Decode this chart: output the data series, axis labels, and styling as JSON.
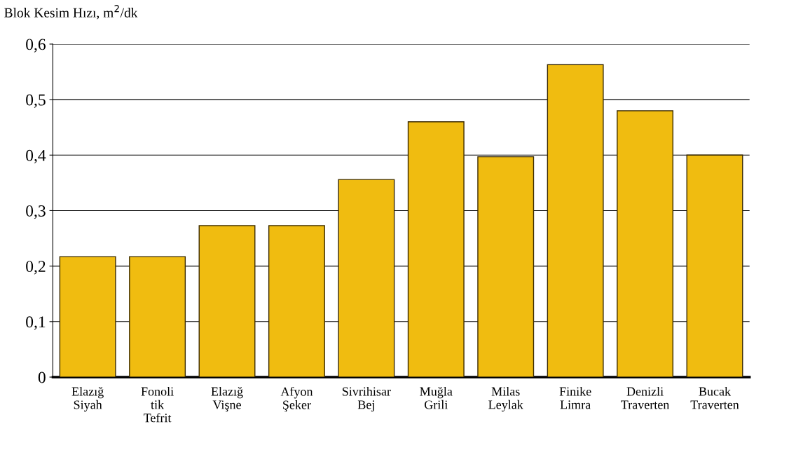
{
  "chart_data": {
    "type": "bar",
    "ylabel": "Blok Kesim Hızı, m$^{2}$/dk",
    "categories": [
      "Elazığ\nSiyah",
      "Fonoli\ntik\nTefrit",
      "Elazığ\nVişne",
      "Afyon\nŞeker",
      "Sivrihisar\nBej",
      "Muğla\nGrili",
      "Milas\nLeylak",
      "Finike\nLimra",
      "Denizli\nTraverten",
      "Bucak\nTraverten"
    ],
    "values": [
      0.217,
      0.217,
      0.273,
      0.273,
      0.356,
      0.46,
      0.397,
      0.563,
      0.48,
      0.4
    ],
    "color": "#f0bc10",
    "ylim": [
      0,
      0.6
    ],
    "yticks": [
      0,
      {
        "value": 0.1,
        "label": "0,1"
      },
      {
        "value": 0.2,
        "label": "0,2"
      },
      {
        "value": 0.3,
        "label": "0,3"
      },
      {
        "value": 0.4,
        "label": "0,4"
      },
      {
        "value": 0.5,
        "label": "0,5"
      },
      {
        "value": 0.6,
        "label": "0,6"
      }
    ],
    "grid": "y"
  }
}
